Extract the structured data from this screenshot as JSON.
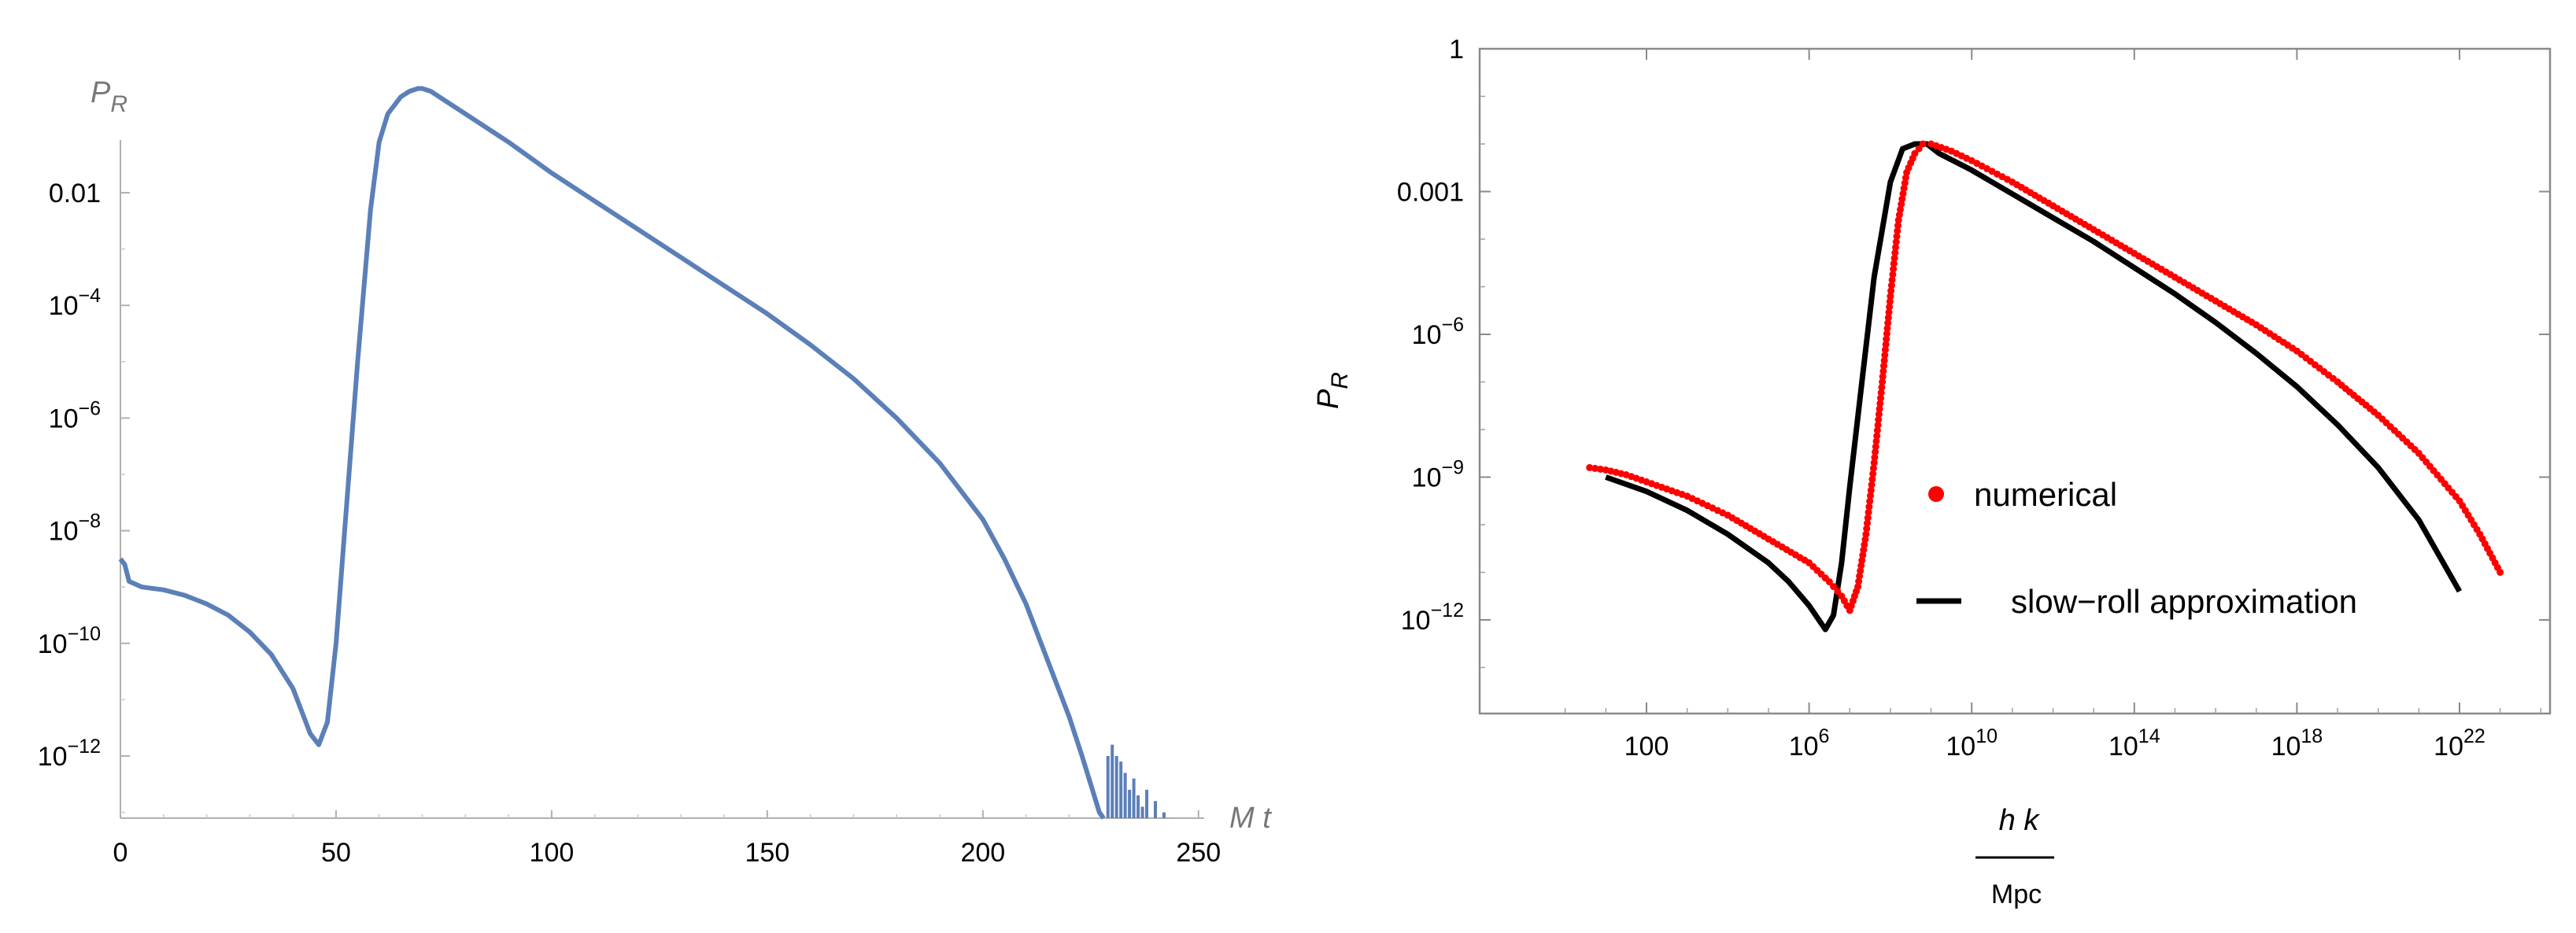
{
  "chart_data": [
    {
      "type": "line",
      "ylabel_main": "P",
      "ylabel_sub": "R",
      "xlabel": "M t",
      "xlim": [
        0,
        250
      ],
      "ylim_log10": [
        -13.3,
        1.4
      ],
      "log_y": true,
      "x_ticks": [
        0,
        50,
        100,
        150,
        200,
        250
      ],
      "x_tick_labels": [
        "0",
        "50",
        "100",
        "150",
        "200",
        "250"
      ],
      "y_ticks_log10": [
        -2,
        -4,
        -6,
        -8,
        -10,
        -12
      ],
      "y_tick_labels": [
        {
          "base": "0.01",
          "exp": ""
        },
        {
          "base": "10",
          "exp": "−4"
        },
        {
          "base": "10",
          "exp": "−6"
        },
        {
          "base": "10",
          "exp": "−8"
        },
        {
          "base": "10",
          "exp": "−10"
        },
        {
          "base": "10",
          "exp": "−12"
        }
      ],
      "series": [
        {
          "color": "#5b7fb8",
          "x": [
            0,
            1,
            2,
            5,
            10,
            15,
            20,
            25,
            30,
            35,
            40,
            44,
            46,
            48,
            50,
            52,
            55,
            58,
            60,
            62,
            65,
            67,
            69,
            70,
            72,
            75,
            80,
            90,
            100,
            110,
            120,
            130,
            140,
            150,
            160,
            170,
            180,
            190,
            200,
            205,
            210,
            215,
            220,
            223,
            225,
            227,
            228
          ],
          "log10_y": [
            -8.5,
            -8.6,
            -8.9,
            -9.0,
            -9.05,
            -9.15,
            -9.3,
            -9.5,
            -9.8,
            -10.2,
            -10.8,
            -11.6,
            -11.8,
            -11.4,
            -10.0,
            -8.0,
            -5.0,
            -2.3,
            -1.1,
            -0.6,
            -0.3,
            -0.2,
            -0.15,
            -0.15,
            -0.2,
            -0.35,
            -0.6,
            -1.1,
            -1.65,
            -2.15,
            -2.65,
            -3.15,
            -3.65,
            -4.15,
            -4.7,
            -5.3,
            -6.0,
            -6.8,
            -7.8,
            -8.5,
            -9.3,
            -10.3,
            -11.3,
            -12.0,
            -12.5,
            -13.0,
            -13.3
          ]
        }
      ],
      "oscillation_x": [
        229,
        230,
        231,
        232,
        233,
        234,
        235,
        236,
        237,
        238,
        240,
        242,
        244,
        246
      ],
      "oscillation_log10_y": [
        -12.0,
        -11.8,
        -12.0,
        -12.1,
        -12.3,
        -12.6,
        -12.4,
        -12.7,
        -12.9,
        -12.6,
        -12.8,
        -13.0,
        -13.1,
        -13.2
      ]
    },
    {
      "type": "scatter",
      "ylabel_main": "P",
      "ylabel_sub": "R",
      "xlabel_num": "h k",
      "xlabel_den": "Mpc",
      "log_x": true,
      "log_y": true,
      "xlim_log10": [
        -1,
        24
      ],
      "ylim_log10": [
        -14.3,
        0
      ],
      "x_ticks_log10": [
        2,
        6,
        10,
        14,
        18,
        22
      ],
      "x_tick_labels": [
        {
          "base": "100",
          "exp": ""
        },
        {
          "base": "10",
          "exp": "6"
        },
        {
          "base": "10",
          "exp": "10"
        },
        {
          "base": "10",
          "exp": "14"
        },
        {
          "base": "10",
          "exp": "18"
        },
        {
          "base": "10",
          "exp": "22"
        }
      ],
      "y_ticks_log10": [
        0,
        -3,
        -6,
        -9,
        -12
      ],
      "y_tick_labels": [
        {
          "base": "1",
          "exp": ""
        },
        {
          "base": "0.001",
          "exp": ""
        },
        {
          "base": "10",
          "exp": "−6"
        },
        {
          "base": "10",
          "exp": "−9"
        },
        {
          "base": "10",
          "exp": "−12"
        }
      ],
      "legend": [
        {
          "label": "numerical",
          "color": "#ff0000",
          "marker": "dot"
        },
        {
          "label": "slow−roll approximation",
          "color": "#000000",
          "marker": "line"
        }
      ],
      "series": [
        {
          "color": "#ff0000",
          "log10_x": [
            0.6,
            1.0,
            1.5,
            2.0,
            3.0,
            4.0,
            5.0,
            6.0,
            6.5,
            6.8,
            7.0,
            7.2,
            7.4,
            7.6,
            7.8,
            8.0,
            8.2,
            8.4,
            8.6,
            8.8,
            9.0,
            9.5,
            10,
            11,
            12,
            13,
            14,
            15,
            16,
            17,
            18,
            19,
            20,
            21,
            22,
            22.5,
            23.0
          ],
          "log10_y": [
            -8.8,
            -8.85,
            -8.95,
            -9.1,
            -9.4,
            -9.8,
            -10.3,
            -10.8,
            -11.2,
            -11.5,
            -11.8,
            -11.3,
            -10.2,
            -8.7,
            -7.0,
            -5.2,
            -3.6,
            -2.6,
            -2.2,
            -2.0,
            -2.0,
            -2.15,
            -2.35,
            -2.8,
            -3.3,
            -3.8,
            -4.3,
            -4.8,
            -5.3,
            -5.8,
            -6.35,
            -7.0,
            -7.7,
            -8.5,
            -9.5,
            -10.2,
            -11.0
          ]
        },
        {
          "color": "#000000",
          "log10_x": [
            1.0,
            2.0,
            3.0,
            4.0,
            5.0,
            5.5,
            6.0,
            6.4,
            6.6,
            6.8,
            7.0,
            7.3,
            7.6,
            8.0,
            8.3,
            8.6,
            8.9,
            9.2,
            10,
            11,
            12,
            13,
            14,
            15,
            16,
            17,
            18,
            19,
            20,
            21,
            22
          ],
          "log10_y": [
            -9.0,
            -9.3,
            -9.7,
            -10.2,
            -10.8,
            -11.2,
            -11.7,
            -12.2,
            -11.9,
            -10.8,
            -9.2,
            -7.0,
            -4.8,
            -2.8,
            -2.1,
            -2.0,
            -2.0,
            -2.2,
            -2.55,
            -3.05,
            -3.55,
            -4.05,
            -4.6,
            -5.15,
            -5.75,
            -6.4,
            -7.1,
            -7.9,
            -8.8,
            -9.9,
            -11.4
          ]
        }
      ]
    }
  ]
}
